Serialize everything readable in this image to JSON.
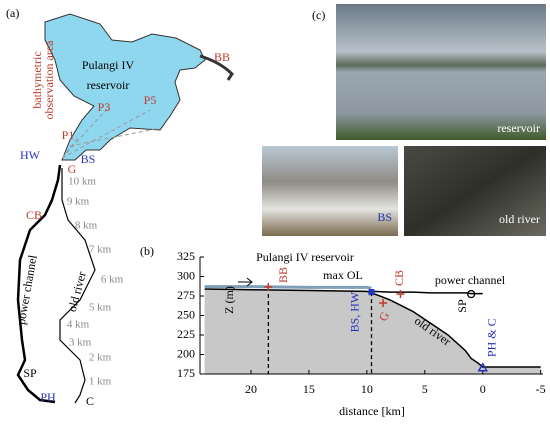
{
  "map": {
    "panel_label": "(a)",
    "area_label": [
      "bathymetric",
      "observation area"
    ],
    "reservoir_label": [
      "Pulangi IV",
      "reservoir"
    ],
    "points": [
      "BB",
      "P5",
      "P3",
      "P1",
      "HW",
      "BS",
      "G",
      "CB",
      "SP",
      "PH",
      "C"
    ],
    "km_marks": [
      "10 km",
      "9 km",
      "8 km",
      "7 km",
      "6 km",
      "5 km",
      "4 km",
      "3 km",
      "2 km",
      "1 km"
    ],
    "channel_label": "power channel",
    "river_label": "old river"
  },
  "photos": {
    "panel_label": "(c)",
    "captions": [
      "reservoir",
      "BS",
      "old river"
    ]
  },
  "chart_data": {
    "type": "area",
    "panel_label": "(b)",
    "title": [
      "Pulangi  IV reservoir",
      "max OL"
    ],
    "xlabel": "distance [km]",
    "ylabel": "Z (m)",
    "x": [
      24,
      20,
      15,
      10,
      9.6,
      8,
      6,
      4.5,
      3,
      1.5,
      1,
      0.5,
      0,
      -5
    ],
    "series": [
      {
        "color": "#c8c8c8",
        "values": [
          284,
          283,
          282,
          281,
          279,
          270,
          255,
          240,
          225,
          205,
          195,
          190,
          184,
          184
        ]
      },
      {
        "color": "#7f9fb8",
        "values": [
          287,
          287,
          286,
          286,
          285,
          null,
          null,
          null,
          null,
          null,
          null,
          null,
          null,
          null
        ]
      },
      {
        "color": "#000000",
        "values": [
          null,
          null,
          null,
          null,
          281,
          280,
          280,
          279,
          279,
          279,
          278,
          278,
          278,
          null
        ]
      }
    ],
    "xlim": [
      24.4,
      -5.2
    ],
    "xticks": [
      20,
      15,
      10,
      5,
      0,
      -5
    ],
    "ylim": [
      175,
      325
    ],
    "yticks": [
      175,
      200,
      225,
      250,
      275,
      300,
      325
    ],
    "annotations": [
      {
        "text": "BB",
        "x": 18.5,
        "y": 286.5,
        "color": "#c0392b",
        "marker": "plus",
        "dashed": true
      },
      {
        "text": "BS, HW",
        "x": 9.6,
        "y": 280,
        "color": "#2233bb",
        "marker": "square",
        "dashed": true
      },
      {
        "text": "G",
        "x": 8.6,
        "y": 266,
        "color": "#c0392b",
        "marker": "plus",
        "dashed": false
      },
      {
        "text": "CB",
        "x": 7.1,
        "y": 277.5,
        "color": "#c0392b",
        "marker": "plus",
        "dashed": false
      },
      {
        "text": "SP",
        "x": 1,
        "y": 277.5,
        "color": "#000000",
        "marker": "circle",
        "dashed": false
      },
      {
        "text": "PH & C",
        "x": 0,
        "y": 183,
        "color": "#2233bb",
        "marker": "triangle",
        "dashed": false
      }
    ],
    "texts": [
      "power channel",
      "old river"
    ]
  }
}
